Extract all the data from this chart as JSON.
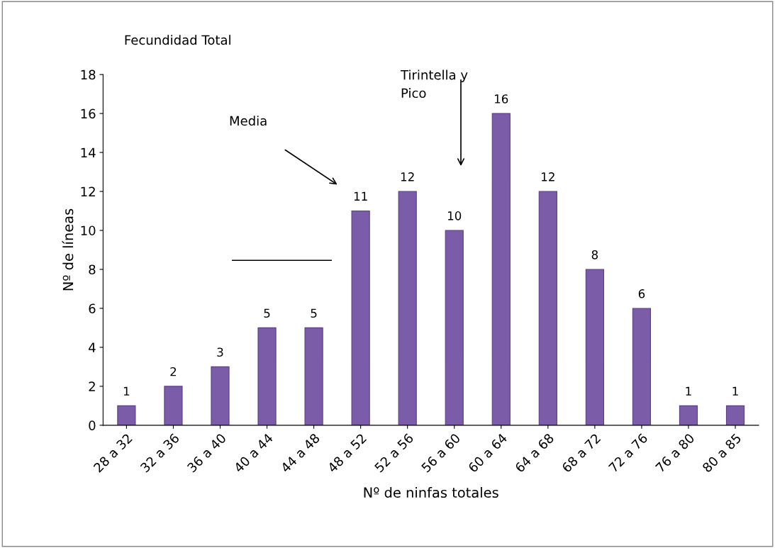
{
  "chart_data": {
    "type": "bar",
    "title": "Fecundidad Total",
    "xlabel": "Nº de ninfas totales",
    "ylabel": "Nº de líneas",
    "categories": [
      "28 a 32",
      "32 a 36",
      "36 a 40",
      "40 a 44",
      "44 a 48",
      "48 a 52",
      "52 a 56",
      "56 a 60",
      "60 a 64",
      "64 a 68",
      "68 a 72",
      "72 a 76",
      "76 a 80",
      "80 a 85"
    ],
    "values": [
      1,
      2,
      3,
      5,
      5,
      11,
      12,
      10,
      16,
      12,
      8,
      6,
      1,
      1
    ],
    "color": "#7a5ca8",
    "ylim": [
      0,
      18
    ],
    "yticks": [
      0,
      2,
      4,
      6,
      8,
      10,
      12,
      14,
      16,
      18
    ],
    "grid": false,
    "data_labels": true,
    "annotations": [
      "Media",
      "Tirintella y\nPico"
    ]
  }
}
